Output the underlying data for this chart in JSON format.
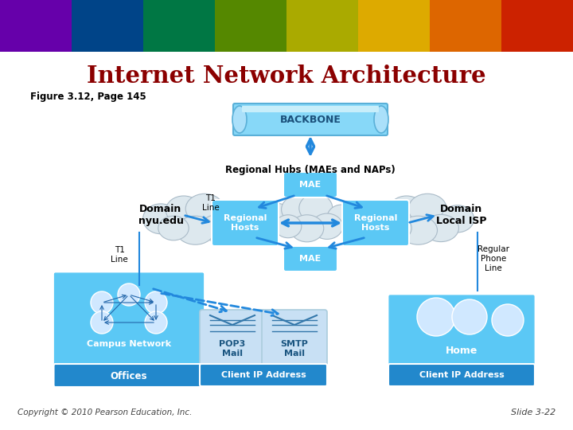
{
  "title": "Internet Network Architecture",
  "subtitle": "Figure 3.12, Page 145",
  "copyright": "Copyright © 2010 Pearson Education, Inc.",
  "slide": "Slide 3-22",
  "bg": "#ffffff",
  "title_color": "#8B0000",
  "header_colors": [
    "#6600aa",
    "#004488",
    "#007744",
    "#558800",
    "#aaaa00",
    "#ddaa00",
    "#dd6600",
    "#cc2200"
  ],
  "box_blue": "#5bc8f5",
  "box_blue2": "#3aadee",
  "box_dark_blue": "#2288cc",
  "cloud_color": "#d8e8f0",
  "cloud_edge": "#aabbc8",
  "arrow_color": "#2288dd",
  "backbone_fill": "#7dd4f5",
  "backbone_edge": "#5ab0d8"
}
